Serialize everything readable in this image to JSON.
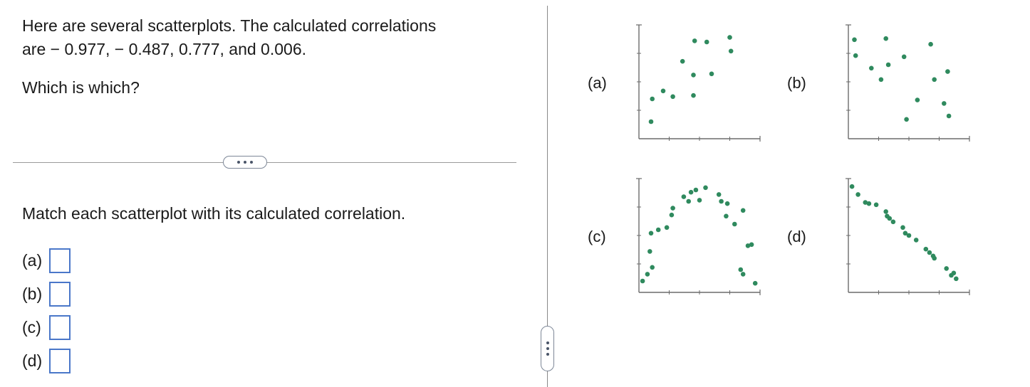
{
  "question": {
    "line1": "Here are several scatterplots. The calculated correlations",
    "line2": "are  − 0.977,  − 0.487, 0.777, and 0.006.",
    "which": "Which is which?"
  },
  "more_button_label": "...",
  "instruction": "Match each scatterplot with its calculated correlation.",
  "answers": [
    {
      "label": "(a)",
      "value": ""
    },
    {
      "label": "(b)",
      "value": ""
    },
    {
      "label": "(c)",
      "value": ""
    },
    {
      "label": "(d)",
      "value": ""
    }
  ],
  "colors": {
    "point": "#2f8a5e",
    "axis": "#6b6b6b",
    "input_border": "#4a77c9"
  },
  "plots": [
    {
      "label": "(a)",
      "points": [
        [
          1,
          1.5
        ],
        [
          1.1,
          3.5
        ],
        [
          2,
          4.2
        ],
        [
          2.8,
          3.7
        ],
        [
          3.6,
          6.8
        ],
        [
          4.5,
          3.8
        ],
        [
          4.5,
          5.6
        ],
        [
          4.6,
          8.6
        ],
        [
          5.6,
          8.5
        ],
        [
          6,
          5.7
        ],
        [
          7.5,
          8.9
        ],
        [
          7.6,
          7.7
        ]
      ]
    },
    {
      "label": "(b)",
      "points": [
        [
          0.5,
          8.7
        ],
        [
          0.6,
          7.3
        ],
        [
          1.9,
          6.2
        ],
        [
          2.7,
          5.2
        ],
        [
          3.1,
          8.8
        ],
        [
          3.3,
          6.5
        ],
        [
          4.6,
          7.2
        ],
        [
          4.8,
          1.7
        ],
        [
          5.7,
          3.4
        ],
        [
          6.8,
          8.3
        ],
        [
          7.1,
          5.2
        ],
        [
          7.9,
          3.1
        ],
        [
          8.2,
          5.9
        ],
        [
          8.3,
          2.0
        ]
      ]
    },
    {
      "label": "(c)",
      "points": [
        [
          0.3,
          1.0
        ],
        [
          0.7,
          1.6
        ],
        [
          0.9,
          3.6
        ],
        [
          1.0,
          5.2
        ],
        [
          1.1,
          2.2
        ],
        [
          1.6,
          5.5
        ],
        [
          2.3,
          5.7
        ],
        [
          2.7,
          6.8
        ],
        [
          2.8,
          7.4
        ],
        [
          3.7,
          8.4
        ],
        [
          4.1,
          8.0
        ],
        [
          4.3,
          8.8
        ],
        [
          4.7,
          9.0
        ],
        [
          5.0,
          8.1
        ],
        [
          5.5,
          9.2
        ],
        [
          6.6,
          8.6
        ],
        [
          6.8,
          8.0
        ],
        [
          7.2,
          6.7
        ],
        [
          7.3,
          7.8
        ],
        [
          7.9,
          6.0
        ],
        [
          8.6,
          7.2
        ],
        [
          8.4,
          2.0
        ],
        [
          8.6,
          1.6
        ],
        [
          9.0,
          4.1
        ],
        [
          9.3,
          4.2
        ],
        [
          9.6,
          0.8
        ]
      ]
    },
    {
      "label": "(d)",
      "points": [
        [
          0.3,
          9.3
        ],
        [
          0.8,
          8.6
        ],
        [
          1.4,
          7.9
        ],
        [
          1.7,
          7.8
        ],
        [
          2.3,
          7.7
        ],
        [
          3.1,
          7.1
        ],
        [
          3.2,
          6.7
        ],
        [
          3.4,
          6.5
        ],
        [
          3.7,
          6.2
        ],
        [
          4.5,
          5.7
        ],
        [
          4.7,
          5.2
        ],
        [
          5.0,
          5.0
        ],
        [
          5.6,
          4.6
        ],
        [
          6.4,
          3.8
        ],
        [
          6.7,
          3.5
        ],
        [
          7.0,
          3.2
        ],
        [
          7.1,
          3.0
        ],
        [
          8.1,
          2.1
        ],
        [
          8.5,
          1.5
        ],
        [
          8.7,
          1.7
        ],
        [
          8.9,
          1.2
        ]
      ]
    }
  ]
}
